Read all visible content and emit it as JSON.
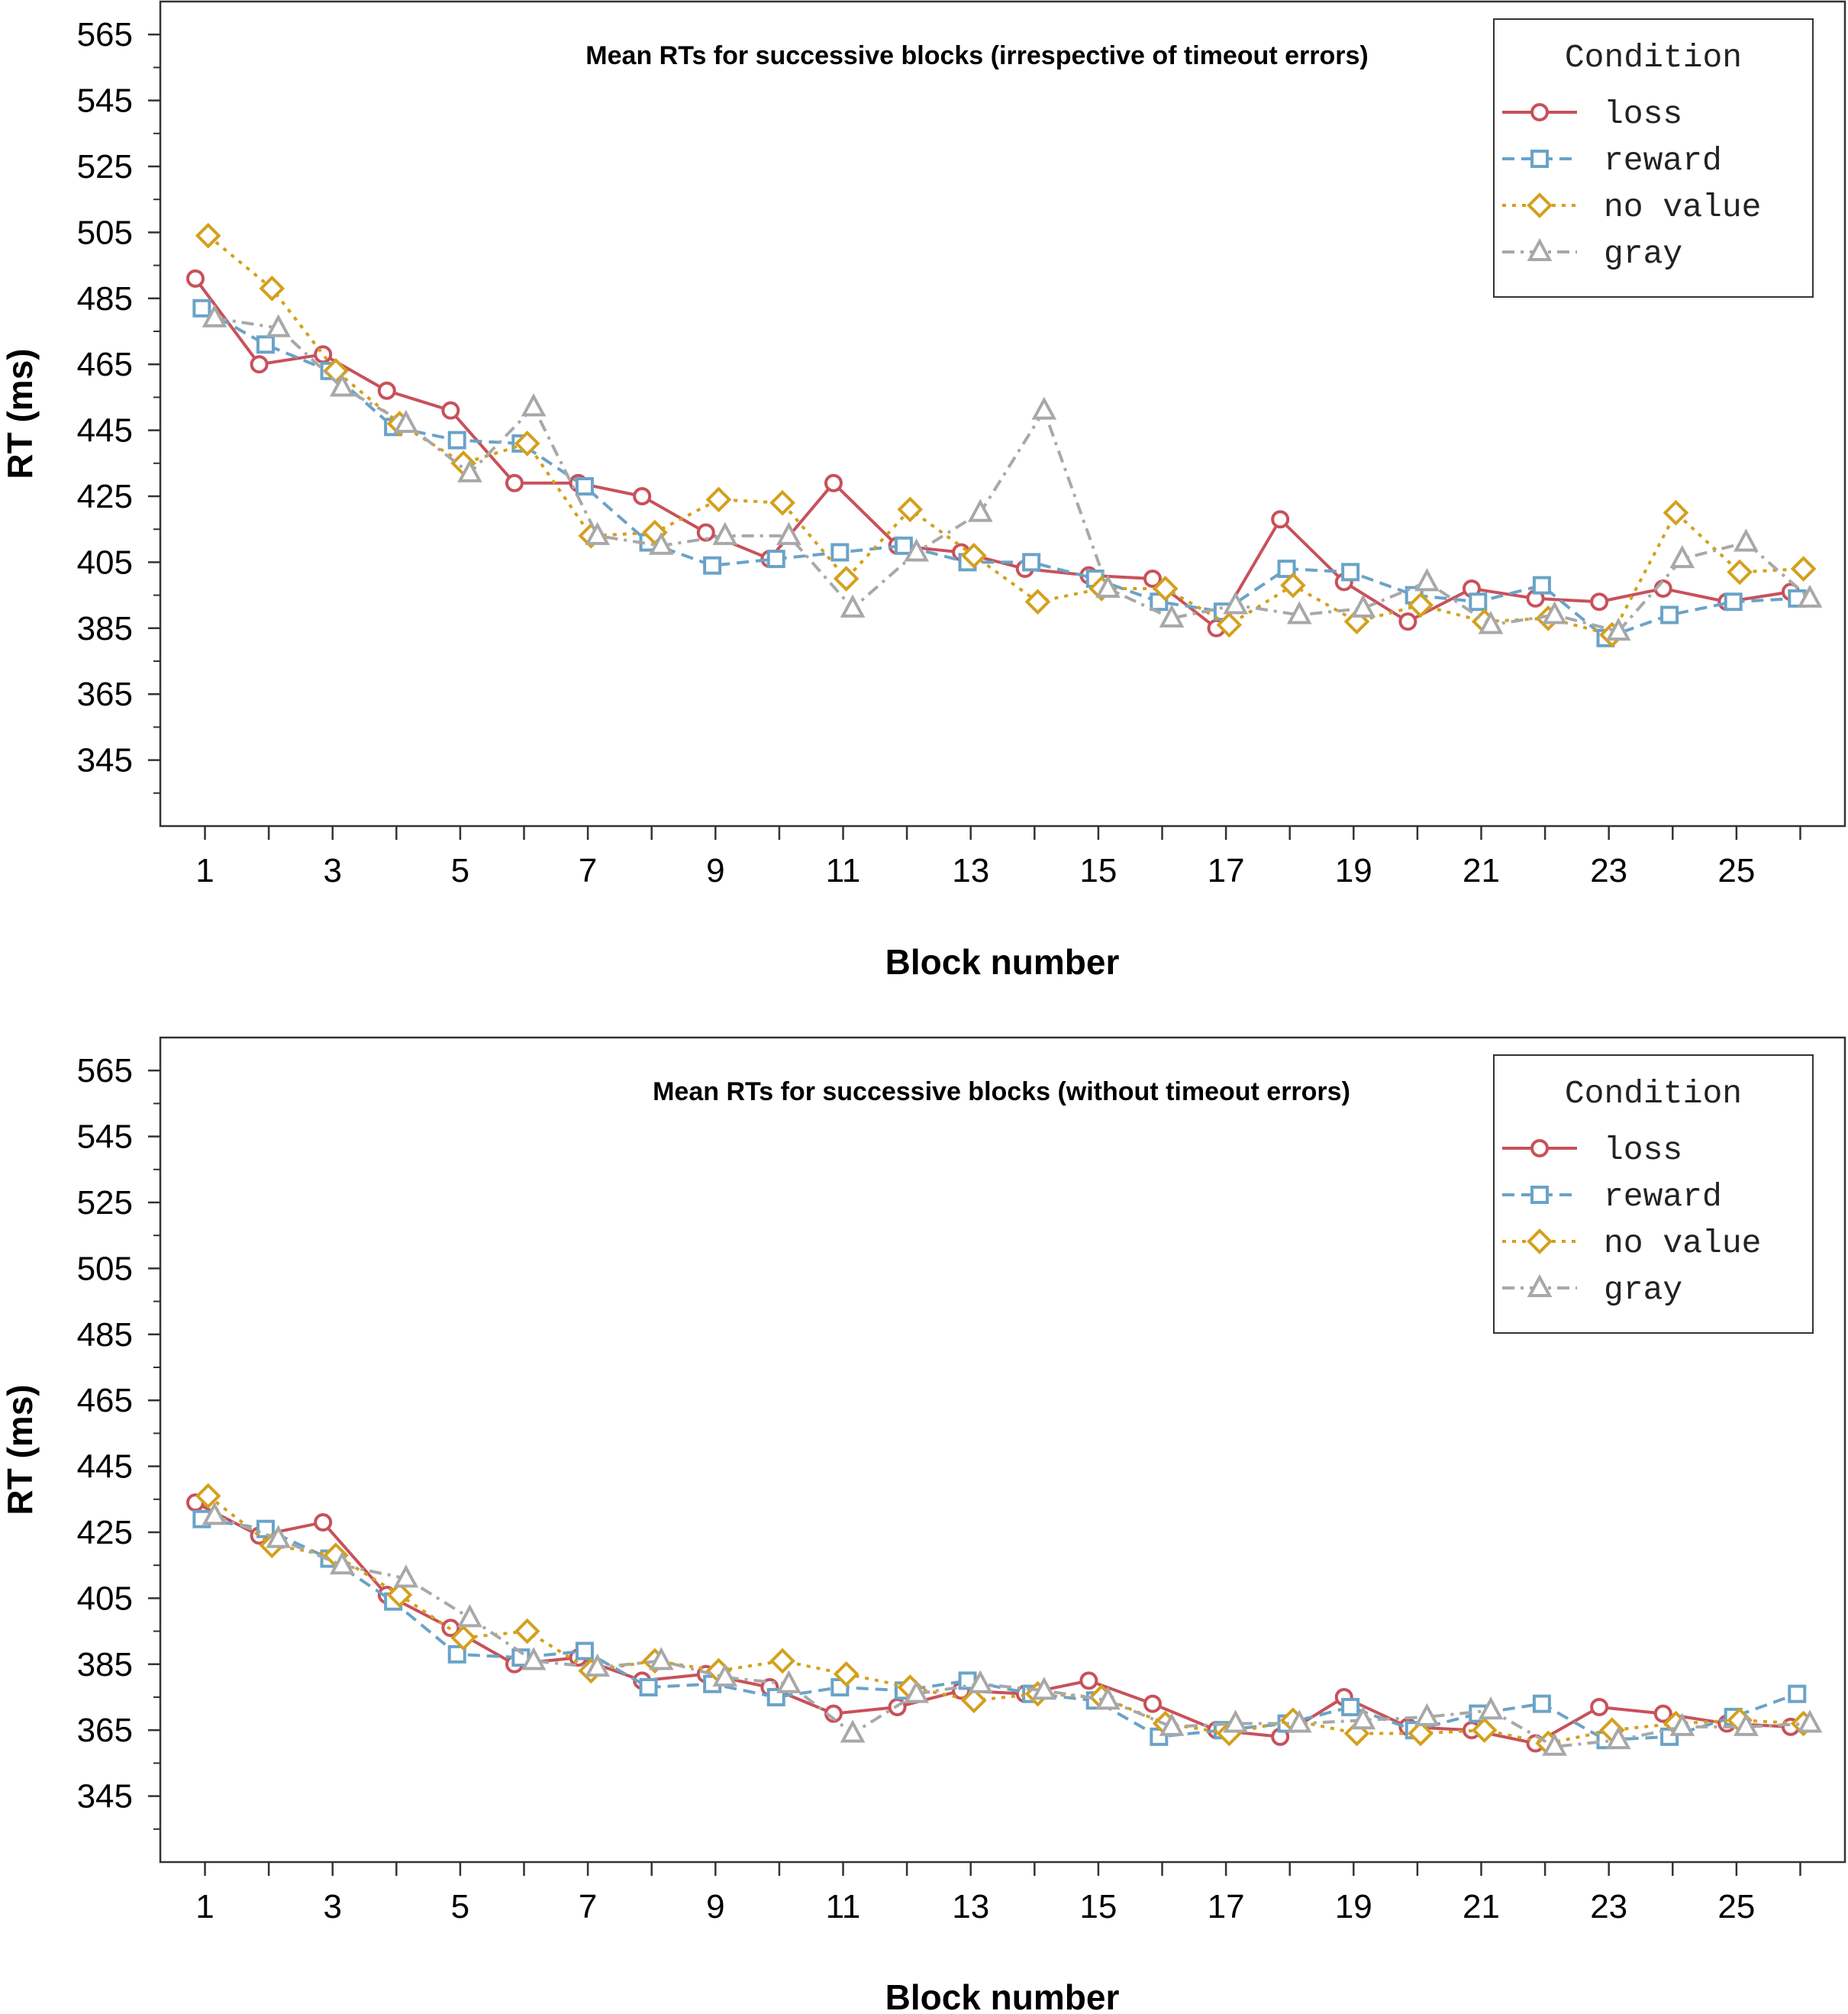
{
  "colors": {
    "loss": "#c8515a",
    "reward": "#6aa3c8",
    "no value": "#d4a01c",
    "gray": "#a8a8a8"
  },
  "chart_data": [
    {
      "type": "line",
      "title": "Mean RTs for successive blocks (irrespective of timeout errors)",
      "xlabel": "Block number",
      "ylabel": "RT (ms)",
      "xlim": [
        0.3,
        26.7
      ],
      "ylim": [
        325,
        575
      ],
      "x_ticks": [
        1,
        3,
        5,
        7,
        9,
        11,
        13,
        15,
        17,
        19,
        21,
        23,
        25
      ],
      "y_ticks": [
        345,
        365,
        385,
        405,
        425,
        445,
        465,
        485,
        505,
        525,
        545,
        565
      ],
      "legend": {
        "title": "Condition",
        "position": "top-right"
      },
      "x": [
        1,
        2,
        3,
        4,
        5,
        6,
        7,
        8,
        9,
        10,
        11,
        12,
        13,
        14,
        15,
        16,
        17,
        18,
        19,
        20,
        21,
        22,
        23,
        24,
        25,
        26
      ],
      "series": [
        {
          "name": "loss",
          "line": "solid",
          "marker": "circle",
          "values": [
            491,
            465,
            468,
            457,
            451,
            429,
            429,
            425,
            414,
            406,
            429,
            410,
            408,
            403,
            401,
            400,
            385,
            418,
            399,
            387,
            397,
            394,
            393,
            397,
            393,
            396
          ]
        },
        {
          "name": "reward",
          "line": "dashed",
          "marker": "square",
          "values": [
            482,
            471,
            463,
            446,
            442,
            441,
            428,
            411,
            404,
            406,
            408,
            410,
            405,
            405,
            400,
            393,
            390,
            403,
            402,
            395,
            393,
            398,
            382,
            389,
            393,
            394
          ]
        },
        {
          "name": "no value",
          "line": "dotted",
          "marker": "diamond",
          "values": [
            504,
            488,
            463,
            447,
            435,
            441,
            413,
            414,
            424,
            423,
            400,
            421,
            407,
            393,
            397,
            397,
            386,
            398,
            387,
            392,
            387,
            388,
            383,
            420,
            402,
            403
          ]
        },
        {
          "name": "gray",
          "line": "dashdot",
          "marker": "triangle",
          "values": [
            479,
            476,
            458,
            447,
            432,
            452,
            413,
            410,
            413,
            413,
            391,
            408,
            420,
            451,
            397,
            388,
            392,
            389,
            391,
            399,
            386,
            389,
            384,
            406,
            411,
            394
          ]
        }
      ]
    },
    {
      "type": "line",
      "title": "Mean RTs for successive blocks (without timeout errors)",
      "xlabel": "Block number",
      "ylabel": "RT (ms)",
      "xlim": [
        0.3,
        26.7
      ],
      "ylim": [
        325,
        575
      ],
      "x_ticks": [
        1,
        3,
        5,
        7,
        9,
        11,
        13,
        15,
        17,
        19,
        21,
        23,
        25
      ],
      "y_ticks": [
        345,
        365,
        385,
        405,
        425,
        445,
        465,
        485,
        505,
        525,
        545,
        565
      ],
      "legend": {
        "title": "Condition",
        "position": "top-right"
      },
      "x": [
        1,
        2,
        3,
        4,
        5,
        6,
        7,
        8,
        9,
        10,
        11,
        12,
        13,
        14,
        15,
        16,
        17,
        18,
        19,
        20,
        21,
        22,
        23,
        24,
        25,
        26
      ],
      "series": [
        {
          "name": "loss",
          "line": "solid",
          "marker": "circle",
          "values": [
            434,
            424,
            428,
            406,
            396,
            385,
            387,
            380,
            382,
            378,
            370,
            372,
            377,
            376,
            380,
            373,
            365,
            363,
            375,
            366,
            365,
            361,
            372,
            370,
            367,
            366
          ]
        },
        {
          "name": "reward",
          "line": "dashed",
          "marker": "square",
          "values": [
            429,
            426,
            417,
            404,
            388,
            387,
            389,
            378,
            379,
            375,
            378,
            377,
            380,
            376,
            374,
            363,
            365,
            367,
            372,
            365,
            370,
            373,
            362,
            363,
            369,
            376
          ]
        },
        {
          "name": "no value",
          "line": "dotted",
          "marker": "diamond",
          "values": [
            436,
            421,
            418,
            406,
            393,
            395,
            383,
            386,
            383,
            386,
            382,
            378,
            374,
            376,
            375,
            367,
            364,
            368,
            364,
            364,
            365,
            361,
            365,
            367,
            368,
            367
          ]
        },
        {
          "name": "gray",
          "line": "dashdot",
          "marker": "triangle",
          "values": [
            430,
            423,
            415,
            411,
            399,
            386,
            384,
            386,
            381,
            379,
            364,
            376,
            379,
            377,
            374,
            366,
            367,
            367,
            368,
            369,
            371,
            360,
            362,
            366,
            366,
            367
          ]
        }
      ]
    }
  ]
}
